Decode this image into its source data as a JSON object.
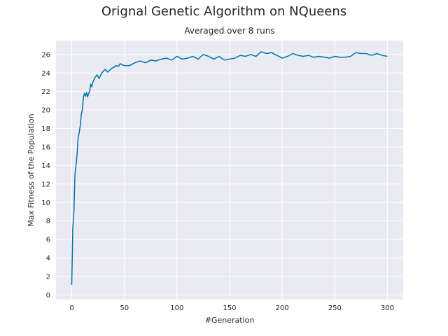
{
  "title": "Orignal Genetic Algorithm on NQueens",
  "subtitle": "Averaged over 8 runs",
  "colors": {
    "line": "#0072b2",
    "plot_bg": "#eaeaf2",
    "grid": "#ffffff"
  },
  "chart_data": {
    "type": "line",
    "xlabel": "#Generation",
    "ylabel": "Max Fitness of the Population",
    "xlim": [
      -15,
      315
    ],
    "ylim": [
      -0.5,
      27.5
    ],
    "xticks": [
      0,
      50,
      100,
      150,
      200,
      250,
      300
    ],
    "yticks": [
      0,
      2,
      4,
      6,
      8,
      10,
      12,
      14,
      16,
      18,
      20,
      22,
      24,
      26
    ],
    "grid": true,
    "series": [
      {
        "x": [
          0,
          1,
          2,
          3,
          4,
          5,
          6,
          7,
          8,
          9,
          10,
          11,
          12,
          13,
          14,
          15,
          16,
          17,
          18,
          19,
          20,
          22,
          24,
          26,
          28,
          30,
          32,
          34,
          36,
          38,
          40,
          42,
          44,
          46,
          48,
          50,
          55,
          60,
          65,
          70,
          75,
          80,
          85,
          90,
          95,
          100,
          105,
          110,
          115,
          120,
          125,
          130,
          135,
          140,
          145,
          150,
          155,
          160,
          165,
          170,
          175,
          180,
          185,
          190,
          193,
          195,
          200,
          205,
          210,
          215,
          220,
          225,
          230,
          235,
          240,
          245,
          250,
          255,
          260,
          265,
          270,
          275,
          280,
          285,
          290,
          295,
          300
        ],
        "y": [
          1.1,
          7.2,
          9,
          13,
          14,
          15.2,
          17,
          17.5,
          18.3,
          19.5,
          20,
          21.3,
          21.8,
          21.5,
          21.9,
          21.4,
          21.8,
          22,
          22.8,
          22.5,
          23,
          23.5,
          23.8,
          23.4,
          23.9,
          24.2,
          24.4,
          24.1,
          24.3,
          24.5,
          24.6,
          24.8,
          24.7,
          25,
          24.9,
          24.8,
          24.8,
          25.1,
          25.3,
          25.1,
          25.4,
          25.3,
          25.5,
          25.6,
          25.4,
          25.8,
          25.5,
          25.6,
          25.8,
          25.5,
          26,
          25.8,
          25.5,
          25.8,
          25.4,
          25.5,
          25.6,
          25.9,
          25.8,
          26,
          25.8,
          26.3,
          26.1,
          26.2,
          26,
          25.9,
          25.6,
          25.8,
          26.1,
          25.9,
          25.8,
          25.9,
          25.7,
          25.8,
          25.7,
          25.6,
          25.8,
          25.7,
          25.7,
          25.8,
          26.2,
          26.1,
          26.1,
          25.9,
          26.1,
          25.9,
          25.8
        ]
      }
    ]
  }
}
